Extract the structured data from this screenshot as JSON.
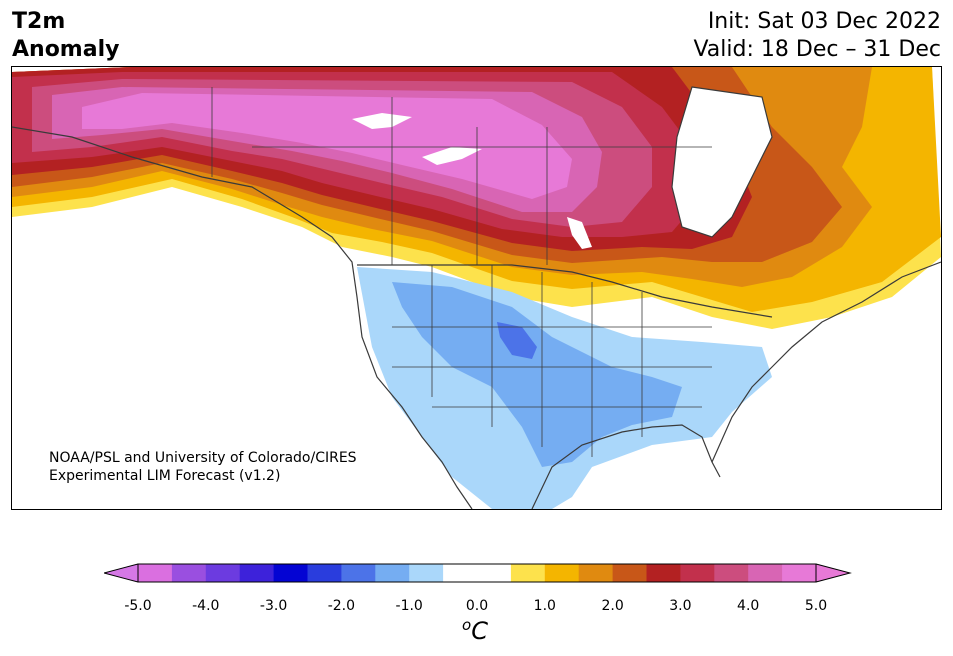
{
  "header": {
    "variable_line1": "T2m",
    "variable_line2": "Anomaly",
    "init": "Init: Sat 03 Dec 2022",
    "valid": "Valid: 18 Dec – 31 Dec"
  },
  "credit": {
    "line1": "NOAA/PSL and University of Colorado/CIRES",
    "line2": "Experimental LIM Forecast (v1.2)"
  },
  "colorbar": {
    "unit_symbol": "o",
    "unit_letter": "C",
    "ticks": [
      "-5.0",
      "-4.0",
      "-3.0",
      "-2.0",
      "-1.0",
      "0.0",
      "1.0",
      "2.0",
      "3.0",
      "4.0",
      "5.0"
    ],
    "colors": [
      "#da6fe0",
      "#9a4fe0",
      "#6c3be0",
      "#3d22da",
      "#0404d3",
      "#2a3ddd",
      "#4c73e8",
      "#75adf2",
      "#aad7fa",
      "#ffffff",
      "#ffffff",
      "#fde24c",
      "#f4b500",
      "#e08a10",
      "#c85718",
      "#b32122",
      "#c2304c",
      "#cc4d7e",
      "#d865b4",
      "#e779d7"
    ],
    "extend_low_color": "#d578e6",
    "extend_high_color": "#e779d7"
  },
  "map": {
    "land_outline_color": "#3a3a3a",
    "border_color": "#3a3a3a"
  }
}
